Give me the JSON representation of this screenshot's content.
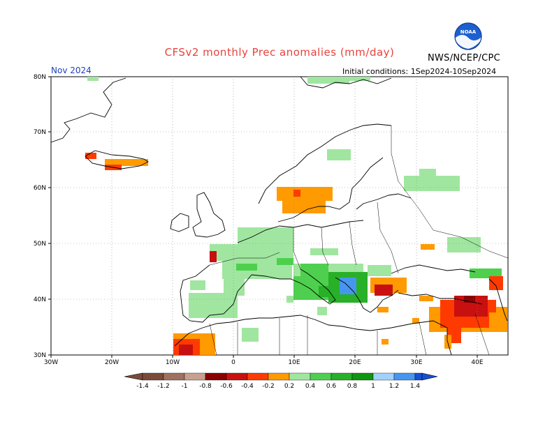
{
  "title": "CFSv2 monthly Prec anomalies (mm/day)",
  "month": "Nov 2024",
  "initial_conditions": "Initial conditions: 1Sep2024-10Sep2024",
  "agency": "NWS/NCEP/CPC",
  "logo_text": "NOAA",
  "lat_labels": [
    "80N",
    "70N",
    "60N",
    "50N",
    "40N",
    "30N"
  ],
  "lon_labels": [
    "30W",
    "20W",
    "10W",
    "0",
    "10E",
    "20E",
    "30E",
    "40E"
  ],
  "colorbar": {
    "labels": [
      "-1.4",
      "-1.2",
      "-1",
      "-0.8",
      "-0.6",
      "-0.4",
      "-0.2",
      "0.2",
      "0.4",
      "0.6",
      "0.8",
      "1",
      "1.2",
      "1.4"
    ],
    "colors": [
      "#7a4a3a",
      "#a07060",
      "#c8a090",
      "#8b0000",
      "#c81010",
      "#ff3a00",
      "#ff9a00",
      "#ffffff",
      "#a0e6a0",
      "#4ed04e",
      "#28b028",
      "#0f960f",
      "#a0d2ff",
      "#4696f0",
      "#1450d2"
    ]
  },
  "legend_colors": {
    "green_light": "#a0e6a0",
    "green": "#4ed04e",
    "green_dark": "#28b028",
    "orange": "#ff9a00",
    "red_orange": "#ff3a00",
    "red": "#c81010",
    "dark_red": "#8b0000",
    "blue": "#4696f0",
    "title_red": "#e8423a",
    "month_blue": "#1f3fbf"
  }
}
